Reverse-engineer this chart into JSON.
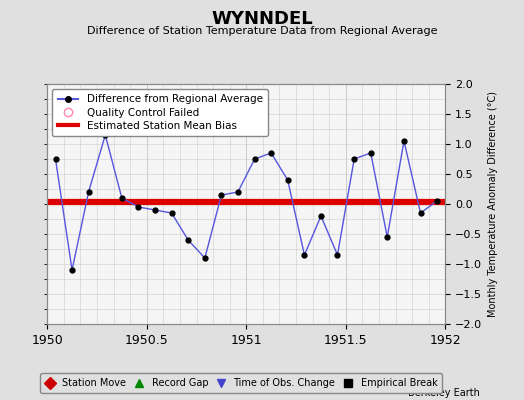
{
  "title": "WYNNDEL",
  "subtitle": "Difference of Station Temperature Data from Regional Average",
  "ylabel_right": "Monthly Temperature Anomaly Difference (°C)",
  "credit": "Berkeley Earth",
  "xlim": [
    1950,
    1952
  ],
  "ylim": [
    -2,
    2
  ],
  "bias_value": 0.03,
  "background_color": "#e0e0e0",
  "plot_bg_color": "#f5f5f5",
  "x_values": [
    1950.042,
    1950.125,
    1950.208,
    1950.292,
    1950.375,
    1950.458,
    1950.542,
    1950.625,
    1950.708,
    1950.792,
    1950.875,
    1950.958,
    1951.042,
    1951.125,
    1951.208,
    1951.292,
    1951.375,
    1951.458,
    1951.542,
    1951.625,
    1951.708,
    1951.792,
    1951.875,
    1951.958
  ],
  "y_values": [
    0.75,
    -1.1,
    0.2,
    1.15,
    0.1,
    -0.05,
    -0.1,
    -0.15,
    -0.6,
    -0.9,
    0.15,
    0.2,
    0.75,
    0.85,
    0.4,
    -0.85,
    -0.2,
    -0.85,
    0.75,
    0.85,
    -0.55,
    1.05,
    -0.15,
    0.05
  ],
  "line_color": "#5555dd",
  "marker_color": "#000000",
  "bias_color": "#dd0000",
  "grid_color": "#cccccc",
  "xticks": [
    1950,
    1950.5,
    1951,
    1951.5,
    1952
  ],
  "xtick_labels": [
    "1950",
    "1950.5",
    "1951",
    "1951.5",
    "1952"
  ],
  "yticks": [
    -2,
    -1.5,
    -1,
    -0.5,
    0,
    0.5,
    1,
    1.5,
    2
  ],
  "legend1_items": [
    {
      "label": "Difference from Regional Average",
      "color": "#5555dd"
    },
    {
      "label": "Quality Control Failed",
      "color": "#ff88aa"
    },
    {
      "label": "Estimated Station Mean Bias",
      "color": "#dd0000"
    }
  ],
  "legend2_items": [
    {
      "label": "Station Move",
      "color": "#cc0000",
      "marker": "D"
    },
    {
      "label": "Record Gap",
      "color": "#008800",
      "marker": "^"
    },
    {
      "label": "Time of Obs. Change",
      "color": "#4444cc",
      "marker": "v"
    },
    {
      "label": "Empirical Break",
      "color": "#000000",
      "marker": "s"
    }
  ]
}
